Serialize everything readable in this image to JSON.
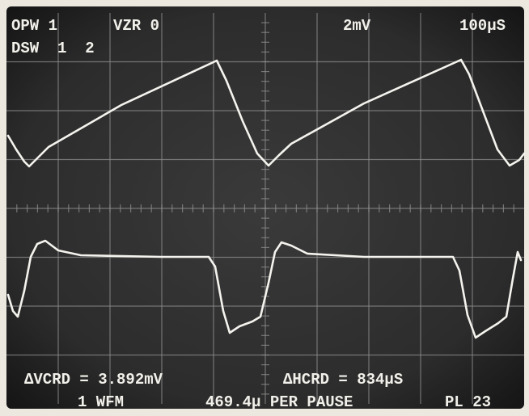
{
  "header": {
    "row1": [
      "OPW 1",
      "VZR 0",
      "2mV",
      "100μS"
    ],
    "row2": "DSW  1  2"
  },
  "footer": {
    "row1": [
      "ΔVCRD = 3.892mV",
      "ΔHCRD = 834μS"
    ],
    "row2": [
      "1 WFM",
      "469.4μ PER PAUSE",
      "PL 23"
    ]
  }
}
